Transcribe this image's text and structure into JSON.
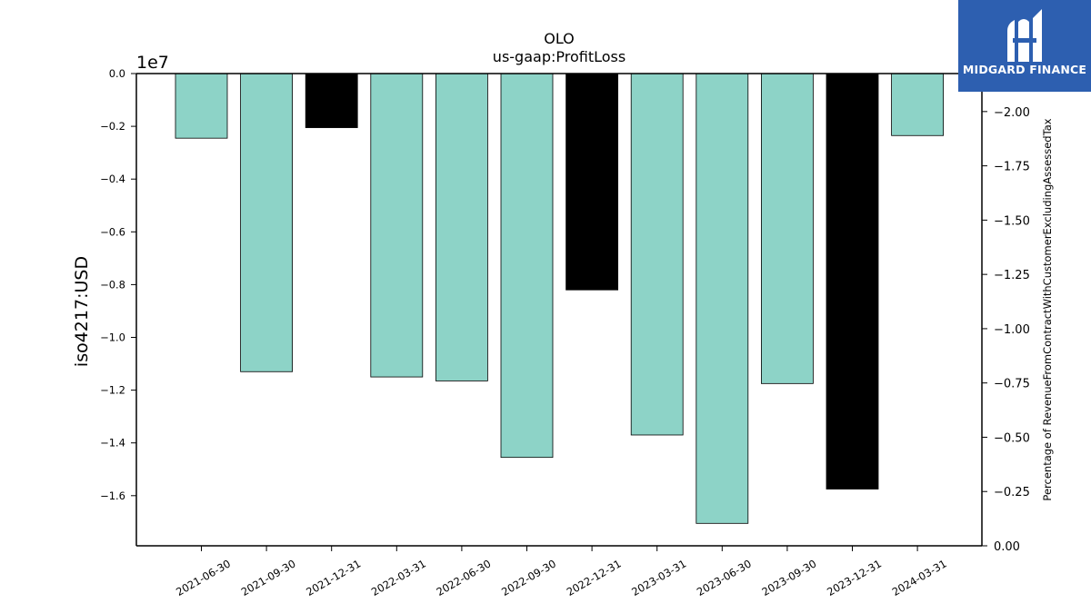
{
  "chart_data": {
    "type": "bar",
    "title": "OLO",
    "subtitle": "us-gaap:ProfitLoss",
    "ylabel": "iso4217:USD",
    "y_offset_label": "1e7",
    "y2label": "Percentage of RevenueFromContractWithCustomerExcludingAssessedTax",
    "ylim": [
      -1.79,
      0.0
    ],
    "y2lim": [
      0.0,
      -2.175
    ],
    "y_ticks": [
      0.0,
      -0.2,
      -0.4,
      -0.6,
      -0.8,
      -1.0,
      -1.2,
      -1.4,
      -1.6
    ],
    "y_tick_labels": [
      "0.0",
      "−0.2",
      "−0.4",
      "−0.6",
      "−0.8",
      "−1.0",
      "−1.2",
      "−1.4",
      "−1.6"
    ],
    "y2_ticks": [
      0.0,
      -0.25,
      -0.5,
      -0.75,
      -1.0,
      -1.25,
      -1.5,
      -1.75,
      -2.0
    ],
    "y2_tick_labels": [
      "0.00",
      "−0.25",
      "−0.50",
      "−0.75",
      "−1.00",
      "−1.25",
      "−1.50",
      "−1.75",
      "−2.00"
    ],
    "categories": [
      "2021-06-30",
      "2021-09-30",
      "2021-12-31",
      "2022-03-31",
      "2022-06-30",
      "2022-09-30",
      "2022-12-31",
      "2023-03-31",
      "2023-06-30",
      "2023-09-30",
      "2023-12-31",
      "2024-03-31"
    ],
    "values": [
      -0.245,
      -1.13,
      -0.205,
      -1.15,
      -1.165,
      -1.455,
      -0.82,
      -1.37,
      -1.705,
      -1.175,
      -1.575,
      -0.235
    ],
    "bar_colors": [
      "#8dd3c7",
      "#8dd3c7",
      "#000000",
      "#8dd3c7",
      "#8dd3c7",
      "#8dd3c7",
      "#000000",
      "#8dd3c7",
      "#8dd3c7",
      "#8dd3c7",
      "#000000",
      "#8dd3c7"
    ],
    "grid": false
  },
  "logo": {
    "text": "MIDGARD FINANCE",
    "background": "#2d5fb0",
    "icon": "midgard-logo-icon"
  }
}
